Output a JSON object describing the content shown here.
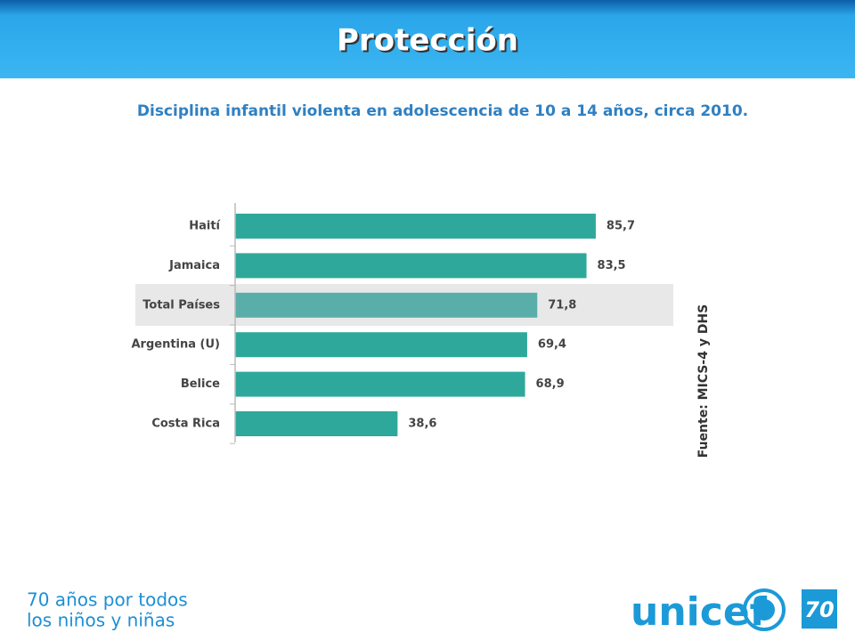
{
  "header": {
    "title": "Protección"
  },
  "subtitle": "Disciplina infantil violenta en adolescencia de 10 a 14 años, circa 2010.",
  "chart_data": {
    "type": "hbar",
    "categories": [
      "Haití",
      "Jamaica",
      "Total Países",
      "Argentina (U)",
      "Belice",
      "Costa Rica"
    ],
    "values": [
      85.7,
      83.5,
      71.8,
      69.4,
      68.9,
      38.6
    ],
    "value_labels": [
      "85,7",
      "83,5",
      "71,8",
      "69,4",
      "68,9",
      "38,6"
    ],
    "color": "#2ea89a",
    "highlight_index": 2,
    "highlight_color": "#5aaea9"
  },
  "source": "Fuente: MICS-4 y DHS",
  "footer": {
    "slogan": [
      "70 años por todos",
      "los niños y niñas"
    ],
    "logo": "unicef",
    "anniversary": "70"
  }
}
